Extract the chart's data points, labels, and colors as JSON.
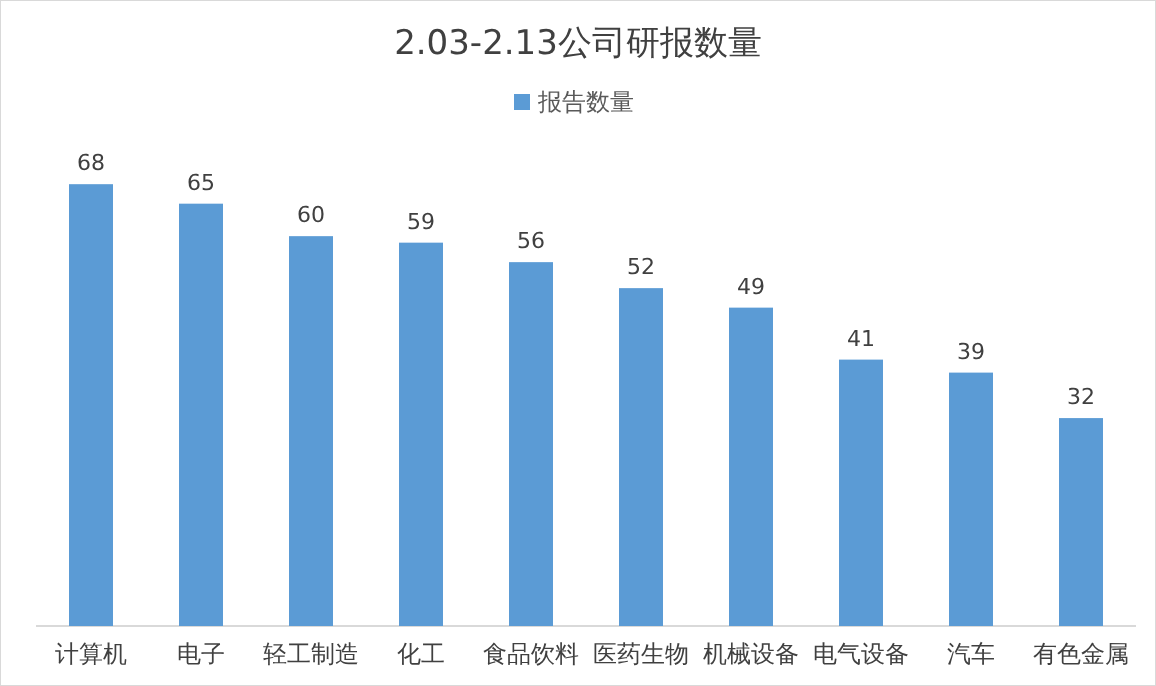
{
  "chart_data": {
    "type": "bar",
    "title": "2.03-2.13公司研报数量",
    "categories": [
      "计算机",
      "电子",
      "轻工制造",
      "化工",
      "食品饮料",
      "医药生物",
      "机械设备",
      "电气设备",
      "汽车",
      "有色金属"
    ],
    "series": [
      {
        "name": "报告数量",
        "color": "#5b9bd5",
        "values": [
          68,
          65,
          60,
          59,
          56,
          52,
          49,
          41,
          39,
          32
        ]
      }
    ],
    "data_labels": true,
    "legend": "top",
    "grid": false
  }
}
